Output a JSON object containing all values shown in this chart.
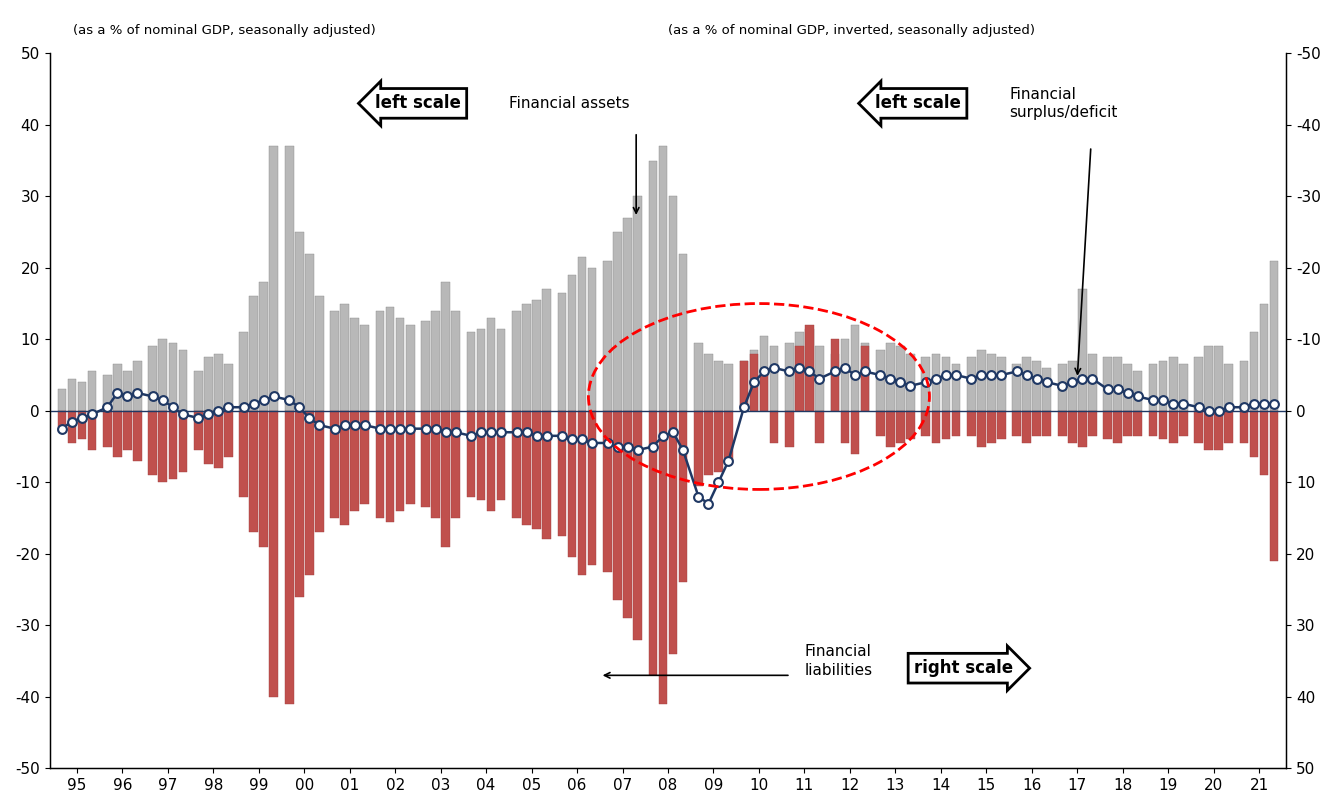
{
  "left_label": "(as a % of nominal GDP, seasonally adjusted)",
  "right_label": "(as a % of nominal GDP, inverted, seasonally adjusted)",
  "xtick_labels": [
    "95",
    "96",
    "97",
    "98",
    "99",
    "00",
    "01",
    "02",
    "03",
    "04",
    "05",
    "06",
    "07",
    "08",
    "09",
    "10",
    "11",
    "12",
    "13",
    "14",
    "15",
    "16",
    "17",
    "18",
    "19",
    "20",
    "21"
  ],
  "ylim_left": [
    -50,
    50
  ],
  "ylim_right": [
    -50,
    50
  ],
  "yticks": [
    -50,
    -40,
    -30,
    -20,
    -10,
    0,
    10,
    20,
    30,
    40,
    50
  ],
  "ytick_labels_left": [
    "-50",
    "-40",
    "-30",
    "-20",
    "-10",
    "0",
    "10",
    "20",
    "30",
    "40",
    "50"
  ],
  "ytick_labels_right": [
    "50",
    "40",
    "30",
    "20",
    "10",
    "0",
    "-10",
    "-20",
    "-30",
    "-40",
    "-50"
  ],
  "asset_color": "#b8b8b8",
  "asset_edge_color": "#888888",
  "liability_color": "#c0504d",
  "liability_edge_color": "#a04040",
  "line_color": "#1f3864",
  "zero_line_color": "#1f3864",
  "ellipse_color": "red",
  "background": "white",
  "financial_assets": [
    3.0,
    4.5,
    4.0,
    5.5,
    5.0,
    6.5,
    5.5,
    7.0,
    9.0,
    10.0,
    9.5,
    8.5,
    5.5,
    7.5,
    8.0,
    6.5,
    11.0,
    16.0,
    18.0,
    37.0,
    37.0,
    25.0,
    22.0,
    16.0,
    14.0,
    15.0,
    13.0,
    12.0,
    14.0,
    14.5,
    13.0,
    12.0,
    12.5,
    14.0,
    18.0,
    14.0,
    11.0,
    11.5,
    13.0,
    11.5,
    14.0,
    15.0,
    15.5,
    17.0,
    16.5,
    19.0,
    21.5,
    20.0,
    21.0,
    25.0,
    27.0,
    30.0,
    35.0,
    37.0,
    30.0,
    22.0,
    9.5,
    8.0,
    7.0,
    6.5,
    7.0,
    8.5,
    10.5,
    9.0,
    9.5,
    11.0,
    11.5,
    9.0,
    8.0,
    10.0,
    12.0,
    9.5,
    8.5,
    9.5,
    9.0,
    8.0,
    7.5,
    8.0,
    7.5,
    6.5,
    7.5,
    8.5,
    8.0,
    7.5,
    6.5,
    7.5,
    7.0,
    6.0,
    6.5,
    7.0,
    17.0,
    8.0,
    7.5,
    7.5,
    6.5,
    5.5,
    6.5,
    7.0,
    7.5,
    6.5,
    7.5,
    9.0,
    9.0,
    6.5,
    7.0,
    11.0,
    15.0,
    21.0
  ],
  "financial_liabilities": [
    -3.0,
    -4.5,
    -4.0,
    -5.5,
    -5.0,
    -6.5,
    -5.5,
    -7.0,
    -9.0,
    -10.0,
    -9.5,
    -8.5,
    -5.5,
    -7.5,
    -8.0,
    -6.5,
    -12.0,
    -17.0,
    -19.0,
    -40.0,
    -41.0,
    -26.0,
    -23.0,
    -17.0,
    -15.0,
    -16.0,
    -14.0,
    -13.0,
    -15.0,
    -15.5,
    -14.0,
    -13.0,
    -13.5,
    -15.0,
    -19.0,
    -15.0,
    -12.0,
    -12.5,
    -14.0,
    -12.5,
    -15.0,
    -16.0,
    -16.5,
    -18.0,
    -17.5,
    -20.5,
    -23.0,
    -21.5,
    -22.5,
    -26.5,
    -29.0,
    -32.0,
    -37.0,
    -41.0,
    -34.0,
    -24.0,
    -10.5,
    -9.0,
    -8.5,
    -7.5,
    7.0,
    8.0,
    5.0,
    -4.5,
    -5.0,
    9.0,
    12.0,
    -4.5,
    10.0,
    -4.5,
    -6.0,
    9.0,
    -3.5,
    -5.0,
    -4.5,
    -4.0,
    -3.5,
    -4.5,
    -4.0,
    -3.5,
    -3.5,
    -5.0,
    -4.5,
    -4.0,
    -3.5,
    -4.5,
    -3.5,
    -3.5,
    -3.5,
    -4.5,
    -5.0,
    -3.5,
    -4.0,
    -4.5,
    -3.5,
    -3.5,
    -3.5,
    -4.0,
    -4.5,
    -3.5,
    -4.5,
    -5.5,
    -5.5,
    -4.5,
    -4.5,
    -6.5,
    -9.0,
    -21.0
  ],
  "financial_surplus": [
    -2.5,
    -1.5,
    -1.0,
    -0.5,
    0.5,
    2.5,
    2.0,
    2.5,
    2.0,
    1.5,
    0.5,
    -0.5,
    -1.0,
    -0.5,
    0.0,
    0.5,
    0.5,
    1.0,
    1.5,
    2.0,
    1.5,
    0.5,
    -1.0,
    -2.0,
    -2.5,
    -2.0,
    -2.0,
    -2.0,
    -2.5,
    -2.5,
    -2.5,
    -2.5,
    -2.5,
    -2.5,
    -3.0,
    -3.0,
    -3.5,
    -3.0,
    -3.0,
    -3.0,
    -3.0,
    -3.0,
    -3.5,
    -3.5,
    -3.5,
    -4.0,
    -4.0,
    -4.5,
    -4.5,
    -5.0,
    -5.0,
    -5.5,
    -5.0,
    -3.5,
    -3.0,
    -5.5,
    -12.0,
    -13.0,
    -10.0,
    -7.0,
    0.5,
    4.0,
    5.5,
    6.0,
    5.5,
    6.0,
    5.5,
    4.5,
    5.5,
    6.0,
    5.0,
    5.5,
    5.0,
    4.5,
    4.0,
    3.5,
    4.0,
    4.5,
    5.0,
    5.0,
    4.5,
    5.0,
    5.0,
    5.0,
    5.5,
    5.0,
    4.5,
    4.0,
    3.5,
    4.0,
    4.5,
    4.5,
    3.0,
    3.0,
    2.5,
    2.0,
    1.5,
    1.5,
    1.0,
    1.0,
    0.5,
    0.0,
    0.0,
    0.5,
    0.5,
    1.0,
    1.0,
    1.0
  ]
}
